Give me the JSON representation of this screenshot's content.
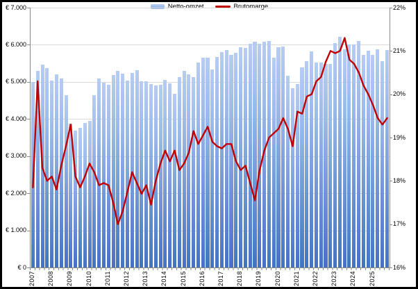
{
  "legend": {
    "items": [
      {
        "label": "Netto-omzet",
        "swatch": "bar-blue",
        "color": "#9bbae9"
      },
      {
        "label": "Brutomarge",
        "swatch": "line-red",
        "color": "#c00000"
      }
    ]
  },
  "chart_data": {
    "type": "combo-bar-line",
    "title": "",
    "grid": "horizontal-on",
    "legend_position": "top-center",
    "categories_years": [
      "2007",
      "2008",
      "2009",
      "2010",
      "2011",
      "2012",
      "2013",
      "2014",
      "2015",
      "2016",
      "2017",
      "2018",
      "2019",
      "2020",
      "2021",
      "2022",
      "2023",
      "2024",
      "2025"
    ],
    "quarters_per_year": 4,
    "axis_left": {
      "min": 0,
      "max": 7000,
      "step": 1000,
      "tick_labels": [
        "€ 7.000",
        "€ 6.000",
        "€ 5.000",
        "€ 4.000",
        "€ 3.000",
        "€ 2.000",
        "€ 1.000",
        "€ 0"
      ]
    },
    "axis_right": {
      "min": 16,
      "max": 22,
      "step": 1,
      "tick_labels": [
        "22%",
        "21%",
        "20%",
        "19%",
        "18%",
        "17%",
        "16%"
      ]
    },
    "series": [
      {
        "name": "Netto-omzet",
        "type": "bar",
        "axis": "left",
        "color_top": "#b7ccf2",
        "color_bottom": "#4472c4",
        "values": [
          5000,
          5300,
          5460,
          5380,
          5030,
          5200,
          5100,
          4650,
          3875,
          3690,
          3770,
          3890,
          3950,
          4640,
          5090,
          4985,
          4920,
          5180,
          5290,
          5220,
          5040,
          5245,
          5310,
          5025,
          5020,
          4950,
          4900,
          4915,
          5055,
          4960,
          4680,
          5135,
          5290,
          5210,
          5135,
          5525,
          5650,
          5660,
          5335,
          5680,
          5805,
          5865,
          5720,
          5790,
          5930,
          5910,
          6035,
          6080,
          6025,
          6090,
          6095,
          5650,
          5930,
          5960,
          5170,
          4830,
          4950,
          5400,
          5550,
          5820,
          5525,
          5520,
          5485,
          5485,
          6050,
          6215,
          5885,
          6000,
          6000,
          6110,
          5735,
          5840,
          5735,
          5885,
          5560,
          5865
        ]
      },
      {
        "name": "Brutomarge",
        "type": "line",
        "axis": "right",
        "color": "#c00000",
        "values": [
          17.85,
          20.3,
          18.3,
          18.0,
          18.1,
          17.8,
          18.35,
          18.8,
          19.3,
          18.1,
          17.85,
          18.1,
          18.4,
          18.2,
          17.9,
          17.95,
          17.9,
          17.5,
          17.0,
          17.3,
          17.75,
          18.2,
          17.95,
          17.7,
          17.9,
          17.45,
          18.0,
          18.4,
          18.7,
          18.45,
          18.7,
          18.25,
          18.4,
          18.65,
          19.15,
          18.85,
          19.05,
          19.25,
          18.9,
          18.8,
          18.75,
          18.85,
          18.85,
          18.45,
          18.25,
          18.35,
          17.95,
          17.55,
          18.25,
          18.7,
          19.0,
          19.1,
          19.2,
          19.45,
          19.2,
          18.8,
          19.6,
          19.55,
          19.95,
          20.0,
          20.3,
          20.4,
          20.75,
          21.0,
          20.95,
          21.0,
          21.3,
          20.8,
          20.7,
          20.5,
          20.2,
          20.0,
          19.75,
          19.45,
          19.3,
          19.45
        ]
      }
    ]
  }
}
